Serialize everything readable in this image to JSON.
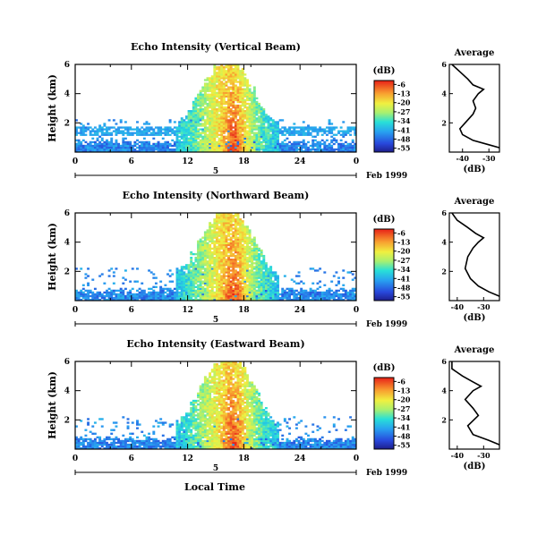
{
  "figure": {
    "colorbar_unit": "(dB)",
    "date_label": "Feb 1999",
    "date_day": "5",
    "xlabel": "Local Time",
    "avg_title": "Average",
    "avg_xlabel": "(dB)",
    "ylabel": "Height (km)"
  },
  "chart_data": [
    {
      "type": "heatmap",
      "title": "Echo Intensity (Vertical Beam)",
      "x_ticks": [
        "0",
        "6",
        "12",
        "18",
        "24",
        "0"
      ],
      "x_minor_ticks": [
        3,
        9,
        15,
        21
      ],
      "x_range_hours": [
        0,
        24
      ],
      "y_ticks": [
        "2",
        "4",
        "6"
      ],
      "y_range_km": [
        0,
        6
      ],
      "colorbar_ticks": [
        "-6",
        "-13",
        "-20",
        "-27",
        "-34",
        "-41",
        "-48",
        "-55"
      ],
      "colorbar_range_db": [
        -58,
        -3
      ],
      "profile": {
        "x_ticks": [
          "-40",
          "-30"
        ],
        "x_range_db": [
          -45,
          -26
        ],
        "y_ticks": [
          "2",
          "4",
          "6"
        ],
        "y_range_km": [
          0,
          6
        ],
        "points": [
          [
            -26,
            0.3
          ],
          [
            -30,
            0.5
          ],
          [
            -36,
            0.8
          ],
          [
            -40,
            1.2
          ],
          [
            -41,
            1.6
          ],
          [
            -39,
            2.0
          ],
          [
            -36,
            2.6
          ],
          [
            -35,
            3.0
          ],
          [
            -36,
            3.5
          ],
          [
            -34,
            4.0
          ],
          [
            -32,
            4.3
          ],
          [
            -36,
            4.6
          ],
          [
            -38,
            5.0
          ],
          [
            -41,
            5.5
          ],
          [
            -44,
            6.0
          ]
        ]
      }
    },
    {
      "type": "heatmap",
      "title": "Echo Intensity (Northward Beam)",
      "x_ticks": [
        "0",
        "6",
        "12",
        "18",
        "24",
        "0"
      ],
      "x_minor_ticks": [
        3,
        9,
        15,
        21
      ],
      "x_range_hours": [
        0,
        24
      ],
      "y_ticks": [
        "2",
        "4",
        "6"
      ],
      "y_range_km": [
        0,
        6
      ],
      "colorbar_ticks": [
        "-6",
        "-13",
        "-20",
        "-27",
        "-34",
        "-41",
        "-48",
        "-55"
      ],
      "colorbar_range_db": [
        -58,
        -3
      ],
      "profile": {
        "x_ticks": [
          "-40",
          "-30"
        ],
        "x_range_db": [
          -43,
          -24
        ],
        "y_ticks": [
          "2",
          "4",
          "6"
        ],
        "y_range_km": [
          0,
          6
        ],
        "points": [
          [
            -24,
            0.3
          ],
          [
            -28,
            0.6
          ],
          [
            -32,
            1.0
          ],
          [
            -35,
            1.5
          ],
          [
            -37,
            2.2
          ],
          [
            -36,
            3.0
          ],
          [
            -34,
            3.6
          ],
          [
            -32,
            4.0
          ],
          [
            -30,
            4.3
          ],
          [
            -33,
            4.6
          ],
          [
            -36,
            5.0
          ],
          [
            -40,
            5.5
          ],
          [
            -42,
            6.0
          ]
        ]
      }
    },
    {
      "type": "heatmap",
      "title": "Echo Intensity (Eastward Beam)",
      "x_ticks": [
        "0",
        "6",
        "12",
        "18",
        "24",
        "0"
      ],
      "x_minor_ticks": [
        3,
        9,
        15,
        21
      ],
      "x_range_hours": [
        0,
        24
      ],
      "y_ticks": [
        "2",
        "4",
        "6"
      ],
      "y_range_km": [
        0,
        6
      ],
      "colorbar_ticks": [
        "-6",
        "-13",
        "-20",
        "-27",
        "-34",
        "-41",
        "-48",
        "-55"
      ],
      "colorbar_range_db": [
        -58,
        -3
      ],
      "profile": {
        "x_ticks": [
          "-40",
          "-30"
        ],
        "x_range_db": [
          -43,
          -24
        ],
        "y_ticks": [
          "2",
          "4",
          "6"
        ],
        "y_range_km": [
          0,
          6
        ],
        "points": [
          [
            -24,
            0.3
          ],
          [
            -28,
            0.6
          ],
          [
            -34,
            1.0
          ],
          [
            -36,
            1.6
          ],
          [
            -32,
            2.3
          ],
          [
            -34,
            2.8
          ],
          [
            -37,
            3.4
          ],
          [
            -34,
            4.0
          ],
          [
            -31,
            4.3
          ],
          [
            -34,
            4.6
          ],
          [
            -38,
            5.0
          ],
          [
            -42,
            5.5
          ],
          [
            -42,
            6.0
          ]
        ]
      }
    }
  ]
}
